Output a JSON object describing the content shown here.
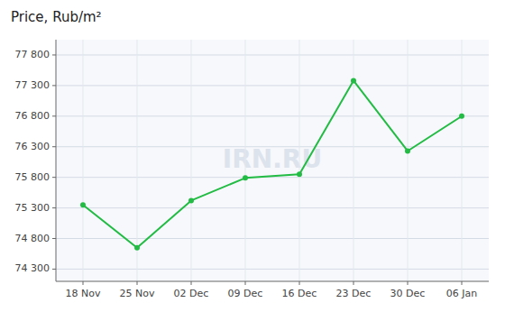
{
  "chart_data": {
    "type": "line",
    "title": "Price, Rub/m²",
    "categories": [
      "18 Nov",
      "25 Nov",
      "02 Dec",
      "09 Dec",
      "16 Dec",
      "23 Dec",
      "30 Dec",
      "06 Jan"
    ],
    "values": [
      75350,
      74650,
      75420,
      75790,
      75850,
      77380,
      76230,
      76800
    ],
    "color": "#22bb44",
    "marker": "circle",
    "ylim": [
      74100,
      78050
    ],
    "yticks": [
      {
        "value": 74300,
        "label": "74 300"
      },
      {
        "value": 74800,
        "label": "74 800"
      },
      {
        "value": 75300,
        "label": "75 300"
      },
      {
        "value": 75800,
        "label": "75 800"
      },
      {
        "value": 76300,
        "label": "76 300"
      },
      {
        "value": 76800,
        "label": "76 800"
      },
      {
        "value": 77300,
        "label": "77 300"
      },
      {
        "value": 77800,
        "label": "77 800"
      }
    ],
    "grid": true,
    "annotations": [
      "IRN.RU"
    ]
  }
}
